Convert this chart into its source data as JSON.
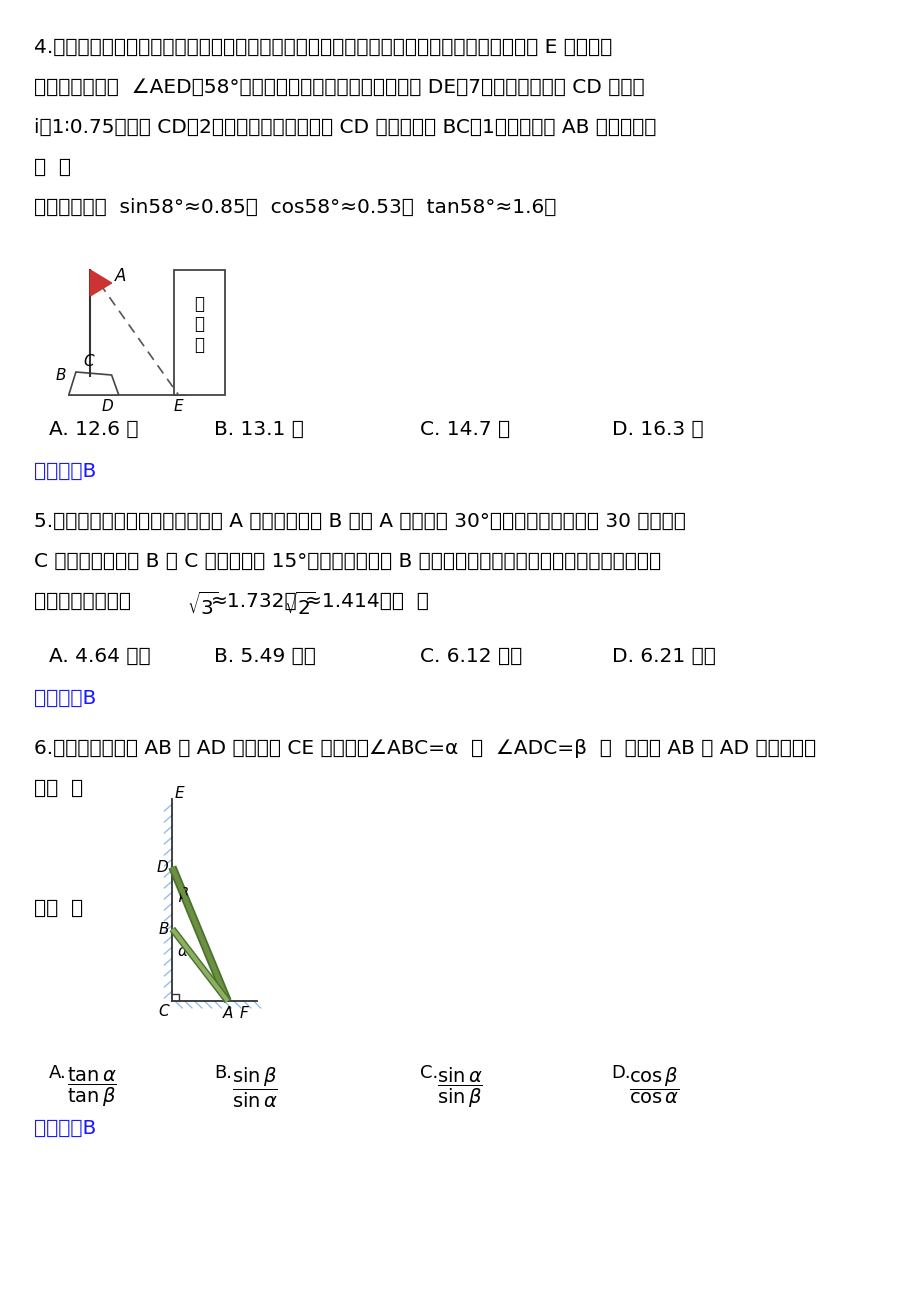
{
  "bg_color": "#ffffff",
  "q4_lines": [
    "4.如图，旗杆及升旗台的剖面和教学楼的剖面在同一平面上，旗杆与地面垂直，在教学楼底部 E 点处测得",
    "旗杆顶端的仰角  ∠AED＝58°，升旗台底部到教学楼底部的距离 DE＝7米，升旗台坡面 CD 的坡度",
    "i＝1∶0.75，坡长 CD＝2米，若旗杆底部到坡面 CD 的水平距离 BC＝1米，则旗杆 AB 的高度约为",
    "（  ）",
    "（参考数据：  sin58°≈0.85，  cos58°≈0.53，  tan58°≈1.6）"
  ],
  "q4_opts": [
    "A. 12.6 米",
    "B. 13.1 米",
    "C. 14.7 米",
    "D. 16.3 米"
  ],
  "q4_ans": "【答案】B",
  "q5_lines": [
    "5.一艘在南北航线上的测量船，于 A 点处测得海岛 B 在点 A 的南偏东 30°方向，继续向南航行 30 海里到达",
    "C 点时，测得海岛 B 在 C 点的北偏东 15°方向，那么海岛 B 离此航线的最近距离是（结果保留小数点后两"
  ],
  "q5_line3a": "位）（参考数据：",
  "q5_line3b": "≈1.732，",
  "q5_line3c": "≈1.414）（  ）",
  "q5_opts": [
    "A. 4.64 海里",
    "B. 5.49 海里",
    "C. 6.12 海里",
    "D. 6.21 海里"
  ],
  "q5_ans": "【答案】B",
  "q6_line1": "6.如图，两根竹竿 AB 和 AD 斜靠在墙 CE 上，量得∠ABC=α  ，  ∠ADC=β  ，  则竹竿 AB 与 AD 的长度之比",
  "q6_line2": "为（  ）",
  "q6_ans": "【答案】B",
  "answer_color": "#1a1aff",
  "answer_bracket_color": "#1a1aff"
}
